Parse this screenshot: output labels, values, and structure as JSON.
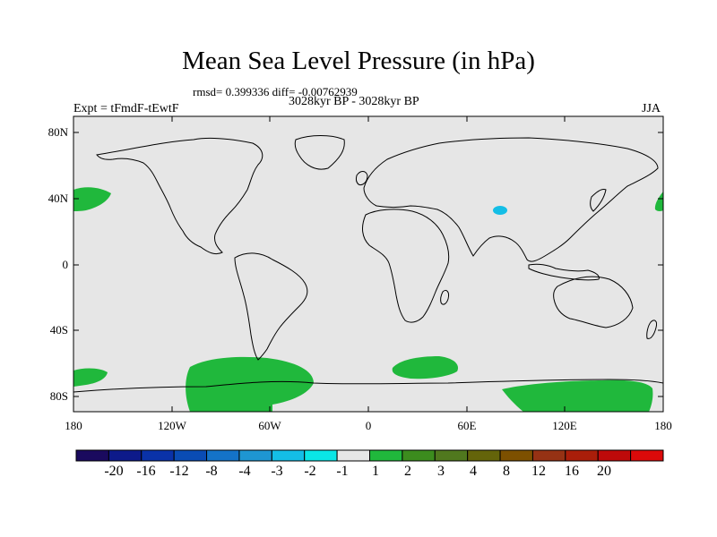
{
  "title": "Mean Sea Level Pressure (in hPa)",
  "stats": "rmsd= 0.399336 diff= -0.00762939",
  "period": "3028kyr BP - 3028kyr BP",
  "expt": "Expt = tFmdF-tEwtF",
  "season": "JJA",
  "lat_labels": [
    "80N",
    "40N",
    "0",
    "40S",
    "80S"
  ],
  "lon_labels": [
    "180",
    "120W",
    "60W",
    "0",
    "60E",
    "120E",
    "180"
  ],
  "colorbar": {
    "colors": [
      "#1a0a5e",
      "#0d1a8a",
      "#0a32a8",
      "#0a4cb4",
      "#1473c8",
      "#1e96d2",
      "#14bee6",
      "#0ae6e6",
      "#e6e6e6",
      "#20b83c",
      "#3c8c1e",
      "#50781e",
      "#64640a",
      "#7d5000",
      "#963214",
      "#aa1e0a",
      "#be0a0a",
      "#dc0a0a"
    ],
    "labels": [
      "-20",
      "-16",
      "-12",
      "-8",
      "-4",
      "-3",
      "-2",
      "-1",
      "1",
      "2",
      "3",
      "4",
      "8",
      "12",
      "16",
      "20"
    ]
  }
}
